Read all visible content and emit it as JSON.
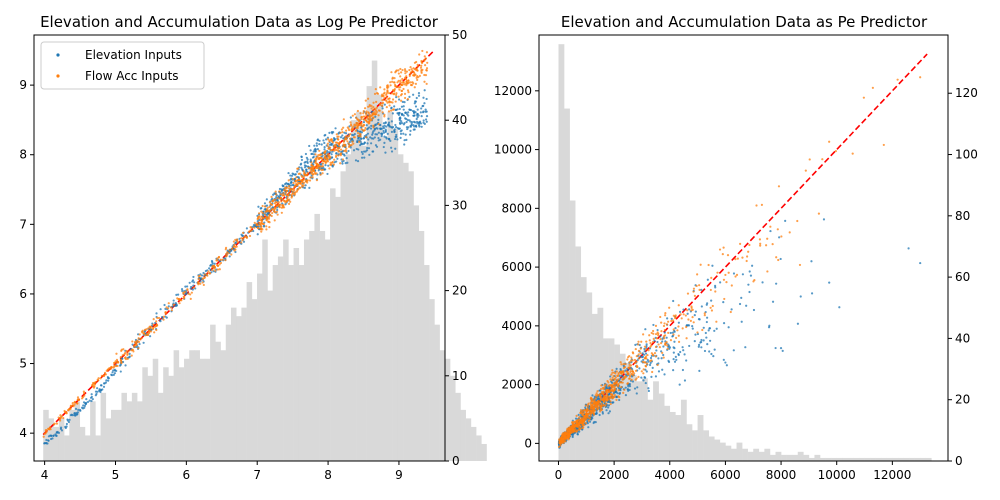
{
  "chart_data": [
    {
      "type": "scatter",
      "title": "Elevation and Accumulation Data as Log Pe Predictor",
      "xlabel": "",
      "ylabel": "",
      "xlim": [
        3.85,
        9.65
      ],
      "ylim": [
        3.6,
        9.72
      ],
      "y2lim": [
        0,
        50
      ],
      "xticks": [
        "4",
        "5",
        "6",
        "7",
        "8",
        "9"
      ],
      "yticks": [
        "4",
        "5",
        "6",
        "7",
        "8",
        "9"
      ],
      "y2ticks": [
        "0",
        "10",
        "20",
        "30",
        "40",
        "50"
      ],
      "grid": false,
      "legend": {
        "position": "top-left",
        "entries": [
          {
            "label": "Elevation Inputs",
            "color": "#1f77b4"
          },
          {
            "label": "Flow Acc Inputs",
            "color": "#ff7f0e"
          }
        ]
      },
      "reference_line": {
        "style": "dashed",
        "color": "#ff0000",
        "x": [
          3.98,
          9.5
        ],
        "y": [
          3.98,
          9.5
        ]
      },
      "histogram": {
        "color": "#d9d9d9",
        "bin_start": 3.98,
        "bin_width": 0.0736,
        "counts": [
          6,
          5,
          4,
          5,
          3,
          6,
          7,
          4,
          3,
          7,
          3,
          8,
          5,
          6,
          6,
          8,
          7,
          8,
          7,
          11,
          10,
          12,
          8,
          11,
          10,
          13,
          11,
          12,
          13,
          13,
          12,
          12,
          16,
          14,
          13,
          16,
          18,
          17,
          18,
          21,
          19,
          22,
          26,
          20,
          23,
          24,
          26,
          23,
          25,
          23,
          26,
          27,
          29,
          27,
          26,
          32,
          31,
          34,
          36,
          40,
          41,
          37,
          44,
          47,
          43,
          38,
          41,
          39,
          36,
          35,
          34,
          30,
          27,
          23,
          19,
          16,
          13,
          12,
          10,
          8,
          6,
          5,
          4,
          3,
          2
        ]
      },
      "series": [
        {
          "name": "Elevation Inputs",
          "color": "#1f77b4",
          "x": [
            3.98,
            4.2,
            4.4,
            4.6,
            4.8,
            5.0,
            5.2,
            5.4,
            5.6,
            5.8,
            6.0,
            6.2,
            6.4,
            6.6,
            6.8,
            7.0,
            7.2,
            7.4,
            7.6,
            7.8,
            8.0,
            8.2,
            8.4,
            8.6,
            8.8,
            9.0,
            9.2,
            9.4
          ],
          "y": [
            3.85,
            4.0,
            4.25,
            4.45,
            4.65,
            4.9,
            5.15,
            5.4,
            5.62,
            5.85,
            6.05,
            6.22,
            6.42,
            6.6,
            6.82,
            7.0,
            7.25,
            7.48,
            7.7,
            7.92,
            8.05,
            8.15,
            8.25,
            8.3,
            8.38,
            8.45,
            8.55,
            8.65
          ]
        },
        {
          "name": "Flow Acc Inputs",
          "color": "#ff7f0e",
          "x": [
            3.98,
            4.2,
            4.4,
            4.6,
            4.8,
            5.0,
            5.2,
            5.4,
            5.6,
            5.8,
            6.0,
            6.2,
            6.4,
            6.6,
            6.8,
            7.0,
            7.2,
            7.4,
            7.6,
            7.8,
            8.0,
            8.2,
            8.4,
            8.6,
            8.8,
            9.0,
            9.2,
            9.4
          ],
          "y": [
            3.98,
            4.2,
            4.4,
            4.6,
            4.8,
            5.0,
            5.2,
            5.4,
            5.6,
            5.8,
            6.0,
            6.2,
            6.4,
            6.6,
            6.8,
            7.0,
            7.2,
            7.4,
            7.6,
            7.8,
            8.0,
            8.2,
            8.4,
            8.6,
            8.8,
            9.0,
            9.15,
            9.3
          ]
        }
      ]
    },
    {
      "type": "scatter",
      "title": "Elevation and Accumulation Data as Pe Predictor",
      "xlabel": "",
      "ylabel": "",
      "xlim": [
        -700,
        14000
      ],
      "ylim": [
        -600,
        13900
      ],
      "y2lim": [
        0,
        139
      ],
      "xticks": [
        "0",
        "2000",
        "4000",
        "6000",
        "8000",
        "10000",
        "12000"
      ],
      "yticks": [
        "0",
        "2000",
        "4000",
        "6000",
        "8000",
        "10000",
        "12000"
      ],
      "y2ticks": [
        "0",
        "20",
        "40",
        "60",
        "80",
        "100",
        "120"
      ],
      "grid": false,
      "reference_line": {
        "style": "dashed",
        "color": "#ff0000",
        "x": [
          0,
          13250
        ],
        "y": [
          0,
          13250
        ]
      },
      "histogram": {
        "color": "#d9d9d9",
        "bin_start": 0,
        "bin_width": 200,
        "counts": [
          136,
          115,
          85,
          70,
          60,
          55,
          48,
          50,
          40,
          40,
          38,
          35,
          32,
          28,
          26,
          27,
          20,
          26,
          22,
          18,
          16,
          15,
          20,
          12,
          10,
          15,
          10,
          8,
          7,
          6,
          5,
          4,
          6,
          4,
          3,
          4,
          3,
          4,
          2,
          3,
          2,
          2,
          2,
          3,
          2,
          1,
          2,
          1,
          1,
          1,
          1,
          1,
          1,
          1,
          1,
          1,
          1,
          1,
          1,
          1,
          1,
          1,
          1,
          1,
          1,
          1,
          1
        ]
      },
      "series": [
        {
          "name": "Elevation Inputs",
          "color": "#1f77b4",
          "x": [
            0,
            500,
            1000,
            1500,
            2000,
            2500,
            3000,
            3500,
            4000,
            4500,
            5000,
            6000,
            7000,
            8000,
            9000,
            10000,
            11000,
            12000,
            13000
          ],
          "y": [
            0,
            450,
            900,
            1400,
            1850,
            2300,
            2700,
            3100,
            3400,
            3700,
            3900,
            4300,
            4700,
            5000,
            5400,
            5700,
            6000,
            6300,
            6700
          ]
        },
        {
          "name": "Flow Acc Inputs",
          "color": "#ff7f0e",
          "x": [
            0,
            500,
            1000,
            1500,
            2000,
            2500,
            3000,
            3500,
            4000,
            4500,
            5000,
            6000,
            7000,
            8000,
            9000,
            10000,
            11000,
            12000,
            13000
          ],
          "y": [
            0,
            480,
            980,
            1480,
            1950,
            2450,
            2950,
            3400,
            3850,
            4300,
            4750,
            5700,
            6600,
            7500,
            8400,
            9300,
            10100,
            10800,
            11400
          ]
        }
      ]
    }
  ]
}
